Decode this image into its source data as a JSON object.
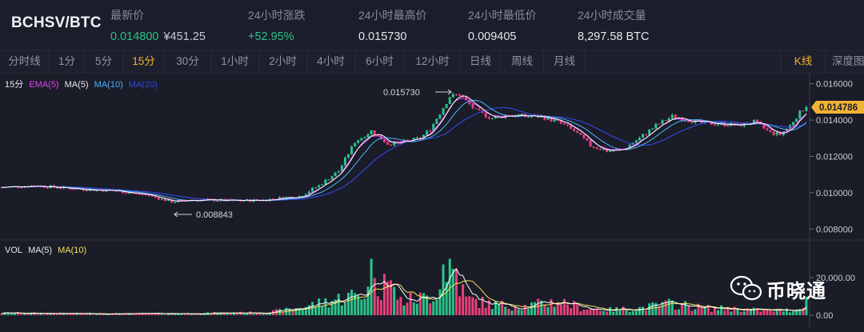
{
  "header": {
    "pair": "BCHSV/BTC",
    "stats": [
      {
        "label": "最新价",
        "value": "0.014800",
        "sub": "¥451.25",
        "color": "#2bc48a"
      },
      {
        "label": "24小时涨跌",
        "value": "+52.95%",
        "color": "#2bc48a"
      },
      {
        "label": "24小时最高价",
        "value": "0.015730"
      },
      {
        "label": "24小时最低价",
        "value": "0.009405"
      },
      {
        "label": "24小时成交量",
        "value": "8,297.58 BTC"
      }
    ]
  },
  "toolbar": {
    "tabs": [
      "分时线",
      "1分",
      "5分",
      "15分",
      "30分",
      "1小时",
      "2小时",
      "4小时",
      "6小时",
      "12小时",
      "日线",
      "周线",
      "月线"
    ],
    "active": "15分",
    "kline": "K线",
    "depth": "深度图"
  },
  "price_panel": {
    "interval": "15分",
    "legend": [
      {
        "text": "EMA(5)",
        "color": "#e040fb"
      },
      {
        "text": "MA(5)",
        "color": "#e6e8ef"
      },
      {
        "text": "MA(10)",
        "color": "#4fb5ff"
      },
      {
        "text": "MA(20)",
        "color": "#3346d6"
      }
    ],
    "max_label": "0.015730",
    "min_label": "0.008843",
    "current_price": "0.014786"
  },
  "volume_panel": {
    "legend": [
      {
        "text": "VOL",
        "color": "#e6e8ef"
      },
      {
        "text": "MA(5)",
        "color": "#e6e8ef"
      },
      {
        "text": "MA(10)",
        "color": "#f7e15a"
      }
    ]
  },
  "colors": {
    "up": "#2bc48a",
    "down": "#e8407a",
    "ma5": "#ffffff",
    "ma10": "#4fb5ff",
    "ma20": "#3346d6",
    "ema5": "#e040fb",
    "vma10": "#f7e15a"
  },
  "watermark": {
    "text": "币晓通"
  },
  "chart_data": {
    "type": "candlestick",
    "price_axis": {
      "ticks": [
        "0.016000",
        "0.014000",
        "0.012000",
        "0.010000",
        "0.008000"
      ],
      "range": [
        0.0074,
        0.0166
      ]
    },
    "volume_axis": {
      "ticks": [
        "20,000.00",
        "0.00"
      ],
      "range": [
        0,
        40000
      ]
    },
    "price_path": [
      [
        0,
        0.0103
      ],
      [
        10,
        0.0104
      ],
      [
        20,
        0.01025
      ],
      [
        35,
        0.0101
      ],
      [
        45,
        0.00985
      ],
      [
        52,
        0.0095
      ],
      [
        58,
        0.0096
      ],
      [
        65,
        0.0096
      ],
      [
        70,
        0.00955
      ],
      [
        80,
        0.0096
      ],
      [
        87,
        0.00975
      ],
      [
        91,
        0.0098
      ],
      [
        97,
        0.0104
      ],
      [
        103,
        0.0112
      ],
      [
        108,
        0.0128
      ],
      [
        113,
        0.0134
      ],
      [
        118,
        0.0127
      ],
      [
        123,
        0.0128
      ],
      [
        128,
        0.013
      ],
      [
        131,
        0.0135
      ],
      [
        134,
        0.0144
      ],
      [
        137,
        0.0153
      ],
      [
        140,
        0.0154
      ],
      [
        145,
        0.0145
      ],
      [
        150,
        0.0141
      ],
      [
        155,
        0.0143
      ],
      [
        160,
        0.0142
      ],
      [
        165,
        0.0142
      ],
      [
        170,
        0.0139
      ],
      [
        175,
        0.0134
      ],
      [
        180,
        0.0126
      ],
      [
        185,
        0.0123
      ],
      [
        190,
        0.0124
      ],
      [
        195,
        0.013
      ],
      [
        200,
        0.0137
      ],
      [
        205,
        0.0142
      ],
      [
        210,
        0.014
      ],
      [
        215,
        0.0138
      ],
      [
        220,
        0.0138
      ],
      [
        225,
        0.0137
      ],
      [
        230,
        0.0139
      ],
      [
        235,
        0.0133
      ],
      [
        238,
        0.0132
      ],
      [
        241,
        0.0137
      ],
      [
        243,
        0.0142
      ],
      [
        246,
        0.0148
      ]
    ],
    "volume_path": [
      [
        0,
        1200
      ],
      [
        20,
        900
      ],
      [
        40,
        800
      ],
      [
        60,
        1000
      ],
      [
        80,
        1500
      ],
      [
        88,
        3000
      ],
      [
        100,
        8000
      ],
      [
        112,
        13000
      ],
      [
        118,
        19000
      ],
      [
        122,
        8000
      ],
      [
        130,
        10000
      ],
      [
        136,
        17000
      ],
      [
        138,
        26000
      ],
      [
        142,
        9000
      ],
      [
        150,
        6000
      ],
      [
        160,
        5000
      ],
      [
        170,
        8000
      ],
      [
        178,
        4000
      ],
      [
        186,
        3000
      ],
      [
        195,
        4000
      ],
      [
        205,
        6500
      ],
      [
        215,
        4000
      ],
      [
        225,
        3500
      ],
      [
        235,
        2500
      ],
      [
        243,
        3000
      ],
      [
        246,
        10000
      ]
    ],
    "volume_spikes": [
      [
        113,
        30000
      ],
      [
        135,
        27000
      ],
      [
        137,
        30000
      ],
      [
        139,
        24500
      ],
      [
        117,
        22000
      ]
    ]
  }
}
